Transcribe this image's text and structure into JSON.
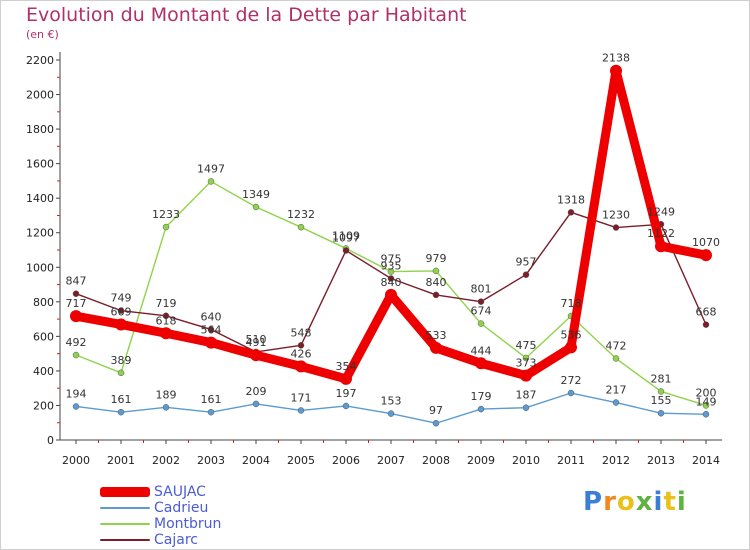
{
  "header": {
    "title": "Evolution du Montant de la Dette par Habitant",
    "subtitle": "(en €)"
  },
  "chart_data": {
    "type": "line",
    "title": "Evolution du Montant de la Dette par Habitant",
    "subtitle": "(en €)",
    "xlabel": "",
    "ylabel": "",
    "ylim": [
      0,
      2200
    ],
    "yticks": [
      0,
      200,
      400,
      600,
      800,
      1000,
      1200,
      1400,
      1600,
      1800,
      2000,
      2200
    ],
    "x": [
      "2000",
      "2001",
      "2002",
      "2003",
      "2004",
      "2005",
      "2006",
      "2007",
      "2008",
      "2009",
      "2010",
      "2011",
      "2012",
      "2013",
      "2014"
    ],
    "grid": false,
    "legend": "bottom-left",
    "series": [
      {
        "name": "SAUJAC",
        "color": "#ee0000",
        "values": [
          717,
          669,
          618,
          564,
          491,
          426,
          354,
          840,
          533,
          444,
          373,
          536,
          2138,
          1122,
          1070
        ],
        "emphasis": true
      },
      {
        "name": "Cadrieu",
        "color": "#5b9bd1",
        "values": [
          194,
          161,
          189,
          161,
          209,
          171,
          197,
          153,
          97,
          179,
          187,
          272,
          217,
          155,
          149
        ],
        "emphasis": false
      },
      {
        "name": "Montbrun",
        "color": "#8fd34a",
        "values": [
          492,
          389,
          1233,
          1497,
          1349,
          1232,
          1109,
          975,
          979,
          674,
          475,
          718,
          472,
          281,
          200
        ],
        "emphasis": false
      },
      {
        "name": "Cajarc",
        "color": "#7a1e2a",
        "values": [
          847,
          749,
          719,
          640,
          510,
          548,
          1097,
          935,
          840,
          801,
          957,
          1318,
          1230,
          1249,
          668
        ],
        "emphasis": false
      }
    ]
  },
  "branding": {
    "logo_text": "Proxiti",
    "colors": [
      "#3a7fd5",
      "#f08a1e",
      "#e8c21a",
      "#5fb341",
      "#3a7fd5",
      "#e8c21a",
      "#5fb341"
    ]
  }
}
